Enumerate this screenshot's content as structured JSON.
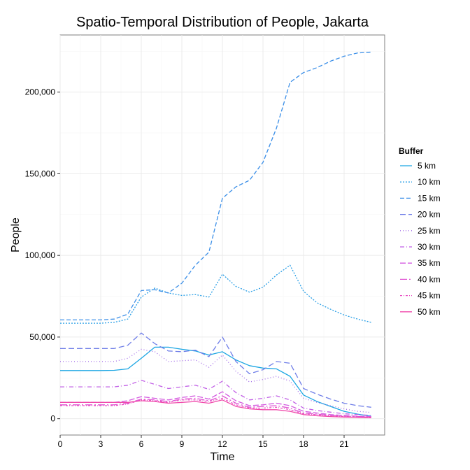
{
  "chart_data": {
    "type": "line",
    "title": "Spatio-Temporal Distribution of People, Jakarta",
    "xlabel": "Time",
    "ylabel": "People",
    "xlim": [
      0,
      24
    ],
    "ylim": [
      -10000,
      235000
    ],
    "x_ticks": [
      0,
      3,
      6,
      9,
      12,
      15,
      18,
      21
    ],
    "y_ticks": [
      0,
      50000,
      100000,
      150000,
      200000
    ],
    "y_tick_labels": [
      "0",
      "50,000",
      "100,000",
      "150,000",
      "200,000"
    ],
    "grid": true,
    "legend": {
      "title": "Buffer",
      "position": "right"
    },
    "x": [
      0,
      1,
      2,
      3,
      4,
      5,
      6,
      7,
      8,
      9,
      10,
      11,
      12,
      13,
      14,
      15,
      16,
      17,
      18,
      19,
      20,
      21,
      22,
      23
    ],
    "series": [
      {
        "name": "5 km",
        "color": "#1ca6e3",
        "dash": "",
        "values": [
          29500,
          29500,
          29500,
          29500,
          29600,
          30500,
          37000,
          43800,
          43800,
          42500,
          41500,
          39000,
          41000,
          36000,
          32500,
          31000,
          30500,
          26000,
          14500,
          10500,
          7500,
          4500,
          2800,
          1500
        ]
      },
      {
        "name": "10 km",
        "color": "#2a9fe6",
        "dash": "2,2",
        "values": [
          58500,
          58500,
          58500,
          58500,
          59000,
          61000,
          74500,
          80000,
          77000,
          75500,
          76000,
          74500,
          88500,
          81000,
          77500,
          80500,
          88000,
          94000,
          78000,
          71000,
          67000,
          63500,
          61000,
          59000
        ]
      },
      {
        "name": "15 km",
        "color": "#3b8fe8",
        "dash": "6,3",
        "values": [
          60500,
          60500,
          60500,
          60500,
          61000,
          64000,
          78500,
          79000,
          77000,
          83000,
          94000,
          102000,
          135000,
          142000,
          146000,
          157000,
          178000,
          206000,
          212000,
          215000,
          219000,
          222000,
          224000,
          224500
        ]
      },
      {
        "name": "20 km",
        "color": "#6f7ee8",
        "dash": "8,4",
        "values": [
          43000,
          43000,
          43000,
          43000,
          43000,
          45000,
          52500,
          46000,
          41500,
          41000,
          42000,
          38000,
          50000,
          35000,
          27500,
          30000,
          35000,
          34000,
          18500,
          15000,
          12000,
          9500,
          8000,
          7000
        ]
      },
      {
        "name": "25 km",
        "color": "#a36be8",
        "dash": "1,3",
        "values": [
          35000,
          35000,
          35000,
          35000,
          35000,
          37000,
          42500,
          41000,
          35000,
          35500,
          36000,
          31500,
          39000,
          29000,
          22500,
          24000,
          26000,
          23000,
          12500,
          10000,
          8000,
          6000,
          4500,
          3800
        ]
      },
      {
        "name": "30 km",
        "color": "#c15fe6",
        "dash": "6,3,1,3",
        "values": [
          19500,
          19500,
          19500,
          19500,
          19500,
          20500,
          23500,
          21000,
          18500,
          19500,
          20500,
          18000,
          23000,
          16000,
          11500,
          12500,
          14000,
          11500,
          6500,
          5000,
          4000,
          3000,
          2500,
          2000
        ]
      },
      {
        "name": "35 km",
        "color": "#d45ae0",
        "dash": "8,3",
        "values": [
          10000,
          10000,
          10000,
          10000,
          10000,
          11000,
          13500,
          12500,
          11500,
          13000,
          14000,
          12000,
          16500,
          11000,
          8000,
          8500,
          9500,
          8000,
          4500,
          3500,
          2500,
          2000,
          1500,
          1300
        ]
      },
      {
        "name": "40 km",
        "color": "#e055d4",
        "dash": "10,3,2,3",
        "values": [
          8500,
          8500,
          8500,
          8500,
          8500,
          9500,
          12000,
          11500,
          10500,
          12000,
          12500,
          11000,
          14000,
          9500,
          7000,
          7500,
          8000,
          6500,
          3500,
          2800,
          2000,
          1600,
          1300,
          1100
        ]
      },
      {
        "name": "45 km",
        "color": "#e950c4",
        "dash": "3,2,1,2",
        "values": [
          8000,
          8000,
          8000,
          8000,
          8000,
          9000,
          11500,
          11000,
          10000,
          11500,
          11500,
          10500,
          12500,
          8500,
          6500,
          6500,
          7000,
          5500,
          3000,
          2400,
          1800,
          1400,
          1100,
          900
        ]
      },
      {
        "name": "50 km",
        "color": "#f04aab",
        "dash": "",
        "values": [
          10000,
          10000,
          10000,
          10000,
          10000,
          10000,
          11000,
          10500,
          9500,
          10000,
          10500,
          9500,
          11500,
          7500,
          6000,
          5500,
          5500,
          4500,
          2500,
          1800,
          1300,
          1000,
          800,
          600
        ]
      }
    ]
  }
}
